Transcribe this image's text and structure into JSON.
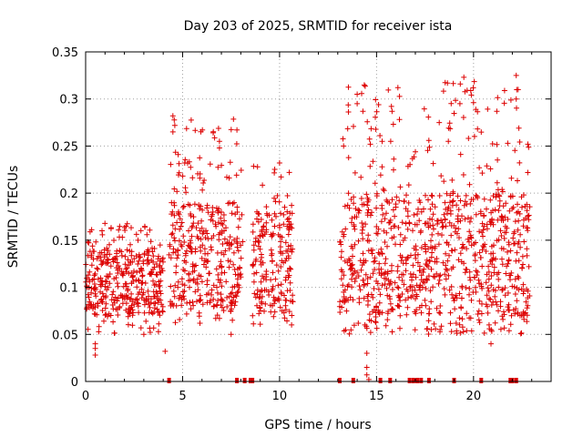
{
  "chart_data": {
    "type": "scatter",
    "title": "Day 203 of 2025, SRMTID for receiver ista",
    "xlabel": "GPS time / hours",
    "ylabel": "SRMTID / TECUs",
    "xlim": [
      0,
      24
    ],
    "ylim": [
      0,
      0.35
    ],
    "xticks": [
      0,
      5,
      10,
      15,
      20
    ],
    "yticks": [
      0,
      0.05,
      0.1,
      0.15,
      0.2,
      0.25,
      0.3,
      0.35
    ],
    "ytick_labels": [
      "0",
      "0.05",
      "0.1",
      "0.15",
      "0.2",
      "0.25",
      "0.3",
      "0.35"
    ],
    "grid": true,
    "marker": "plus",
    "color": "#dd0000",
    "segments": [
      {
        "start": 0.0,
        "end": 4.0,
        "low": 0.07,
        "high": 0.14,
        "peak": 0.17
      },
      {
        "start": 4.3,
        "end": 8.1,
        "low": 0.08,
        "high": 0.19,
        "peak": 0.28
      },
      {
        "start": 8.6,
        "end": 10.7,
        "low": 0.08,
        "high": 0.18,
        "peak": 0.23
      },
      {
        "start": 13.1,
        "end": 22.9,
        "low": 0.07,
        "high": 0.2,
        "peak": 0.32
      }
    ],
    "peaks": [
      {
        "x": 4.5,
        "y": 0.282
      },
      {
        "x": 4.5,
        "y": 0.265
      },
      {
        "x": 6.9,
        "y": 0.255
      },
      {
        "x": 6.9,
        "y": 0.248
      },
      {
        "x": 10.0,
        "y": 0.232
      },
      {
        "x": 10.5,
        "y": 0.222
      },
      {
        "x": 14.0,
        "y": 0.305
      },
      {
        "x": 14.0,
        "y": 0.295
      },
      {
        "x": 16.1,
        "y": 0.312
      },
      {
        "x": 15.8,
        "y": 0.287
      },
      {
        "x": 19.5,
        "y": 0.323
      },
      {
        "x": 19.3,
        "y": 0.295
      },
      {
        "x": 22.2,
        "y": 0.325
      },
      {
        "x": 22.3,
        "y": 0.31
      },
      {
        "x": 22.2,
        "y": 0.3
      },
      {
        "x": 22.8,
        "y": 0.252
      },
      {
        "x": 18.7,
        "y": 0.255
      },
      {
        "x": 13.3,
        "y": 0.25
      }
    ],
    "lows": [
      {
        "x": 0.5,
        "y": 0.04
      },
      {
        "x": 0.5,
        "y": 0.035
      },
      {
        "x": 0.5,
        "y": 0.028
      },
      {
        "x": 4.1,
        "y": 0.032
      },
      {
        "x": 14.4,
        "y": 0.06
      },
      {
        "x": 14.5,
        "y": 0.03
      },
      {
        "x": 14.5,
        "y": 0.015
      },
      {
        "x": 14.5,
        "y": 0.007
      },
      {
        "x": 14.6,
        "y": 0.002
      },
      {
        "x": 20.9,
        "y": 0.04
      },
      {
        "x": 20.8,
        "y": 0.06
      },
      {
        "x": 3.0,
        "y": 0.05
      },
      {
        "x": 7.5,
        "y": 0.05
      },
      {
        "x": 22.4,
        "y": 0.07
      }
    ],
    "data_gap_markers": [
      4.3,
      7.8,
      8.2,
      8.5,
      8.6,
      13.1,
      13.8,
      15.2,
      15.7,
      16.7,
      16.9,
      17.1,
      17.3,
      17.7,
      19.0,
      20.4,
      21.9,
      22.0,
      22.2
    ]
  }
}
